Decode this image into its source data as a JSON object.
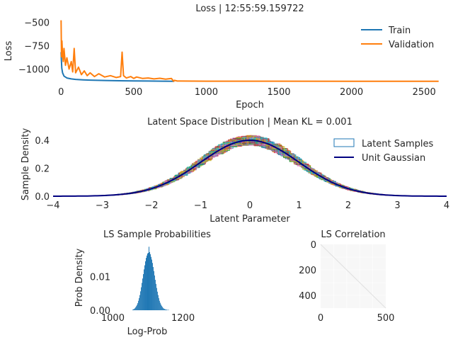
{
  "chart_data": [
    {
      "type": "line",
      "title": "Loss | 12:55:59.159722",
      "xlabel": "Epoch",
      "ylabel": "Loss",
      "xlim": [
        -60,
        2660
      ],
      "ylim": [
        -1170,
        -430
      ],
      "xticks": [
        0,
        500,
        1000,
        1500,
        2000,
        2500
      ],
      "yticks": [
        -500,
        -750,
        -1000
      ],
      "grid": false,
      "legend": "top-right",
      "series": [
        {
          "name": "Train",
          "color": "#1f77b4",
          "x": [
            0,
            2,
            5,
            10,
            20,
            40,
            70,
            100,
            150,
            200,
            300,
            400,
            500,
            600,
            700,
            780
          ],
          "y": [
            -820,
            -900,
            -990,
            -1040,
            -1075,
            -1095,
            -1105,
            -1110,
            -1115,
            -1118,
            -1122,
            -1125,
            -1127,
            -1128,
            -1129,
            -1130
          ]
        },
        {
          "name": "Validation",
          "color": "#ff7f0e",
          "x": [
            0,
            3,
            6,
            10,
            15,
            20,
            30,
            40,
            55,
            70,
            80,
            90,
            100,
            120,
            140,
            160,
            180,
            200,
            230,
            260,
            300,
            340,
            380,
            410,
            420,
            430,
            450,
            480,
            500,
            520,
            560,
            600,
            640,
            680,
            720,
            760,
            775,
            780,
            800,
            1000,
            1500,
            2000,
            2500,
            2600
          ],
          "y": [
            -480,
            -870,
            -700,
            -850,
            -920,
            -780,
            -960,
            -880,
            -1000,
            -920,
            -1030,
            -780,
            -1040,
            -980,
            -1060,
            -1020,
            -1070,
            -1040,
            -1080,
            -1050,
            -1085,
            -1070,
            -1090,
            -1080,
            -820,
            -1070,
            -1095,
            -1080,
            -1100,
            -1085,
            -1100,
            -1095,
            -1105,
            -1098,
            -1108,
            -1100,
            -1130,
            -1120,
            -1128,
            -1129,
            -1129,
            -1130,
            -1130,
            -1130
          ]
        }
      ]
    },
    {
      "type": "area",
      "title": "Latent Space Distribution | Mean KL = 0.001",
      "xlabel": "Latent Parameter",
      "ylabel": "Sample Density",
      "xlim": [
        -4,
        4
      ],
      "ylim": [
        0,
        0.48
      ],
      "xticks": [
        -4,
        -3,
        -2,
        -1,
        0,
        1,
        2,
        3,
        4
      ],
      "yticks": [
        0.0,
        0.2,
        0.4
      ],
      "grid": false,
      "legend": "top-right",
      "series": [
        {
          "name": "Latent Samples",
          "color": "#1f77b4",
          "kind": "step-histograms"
        },
        {
          "name": "Unit Gaussian",
          "color": "#000080",
          "kind": "pdf",
          "x": [
            -4,
            -3.5,
            -3,
            -2.5,
            -2,
            -1.5,
            -1,
            -0.5,
            0,
            0.5,
            1,
            1.5,
            2,
            2.5,
            3,
            3.5,
            4
          ],
          "y": [
            0.0001,
            0.0009,
            0.0044,
            0.0175,
            0.054,
            0.1295,
            0.242,
            0.3521,
            0.3989,
            0.3521,
            0.242,
            0.1295,
            0.054,
            0.0175,
            0.0044,
            0.0009,
            0.0001
          ]
        }
      ]
    },
    {
      "type": "bar",
      "title": "LS Sample Probabilities",
      "xlabel": "Log-Prob",
      "ylabel": "Prob Density",
      "xlim": [
        985,
        1215
      ],
      "ylim": [
        0,
        0.0195
      ],
      "xticks": [
        1000,
        1200
      ],
      "yticks": [
        0.0,
        0.01
      ],
      "color": "#1f77b4",
      "bin_width": 2,
      "x": [
        1056,
        1058,
        1060,
        1062,
        1064,
        1066,
        1068,
        1070,
        1072,
        1074,
        1076,
        1078,
        1080,
        1082,
        1084,
        1086,
        1088,
        1090,
        1092,
        1094,
        1096,
        1098,
        1100,
        1102,
        1104,
        1106,
        1108,
        1110,
        1112,
        1114,
        1116,
        1118,
        1120,
        1122,
        1124,
        1126,
        1128,
        1130,
        1132,
        1134,
        1136,
        1138,
        1140,
        1142,
        1144,
        1146,
        1148,
        1150,
        1152,
        1154,
        1156,
        1158
      ],
      "values": [
        0.0002,
        0.0003,
        0.0004,
        0.0006,
        0.0009,
        0.0012,
        0.0016,
        0.0021,
        0.0028,
        0.0036,
        0.0045,
        0.0056,
        0.0068,
        0.0081,
        0.0094,
        0.0107,
        0.0121,
        0.0133,
        0.0145,
        0.0155,
        0.0162,
        0.0168,
        0.017,
        0.0188,
        0.0172,
        0.0166,
        0.0158,
        0.015,
        0.014,
        0.0128,
        0.0116,
        0.0103,
        0.009,
        0.0078,
        0.0066,
        0.0055,
        0.0045,
        0.0036,
        0.0028,
        0.0022,
        0.0017,
        0.0013,
        0.001,
        0.0007,
        0.0005,
        0.0004,
        0.0003,
        0.0002,
        0.0002,
        0.0001,
        0.0001,
        0.0001
      ]
    },
    {
      "type": "heatmap",
      "title": "LS Correlation",
      "xlabel": "",
      "ylabel": "",
      "xlim": [
        0,
        500
      ],
      "ylim": [
        500,
        0
      ],
      "xticks": [
        0,
        500
      ],
      "yticks": [
        0,
        200,
        400
      ],
      "diagonal": 1.0,
      "off_diagonal": 0.0,
      "colors": {
        "background": "#f7f7f7",
        "diagonal": "#e2e2e2"
      }
    }
  ]
}
